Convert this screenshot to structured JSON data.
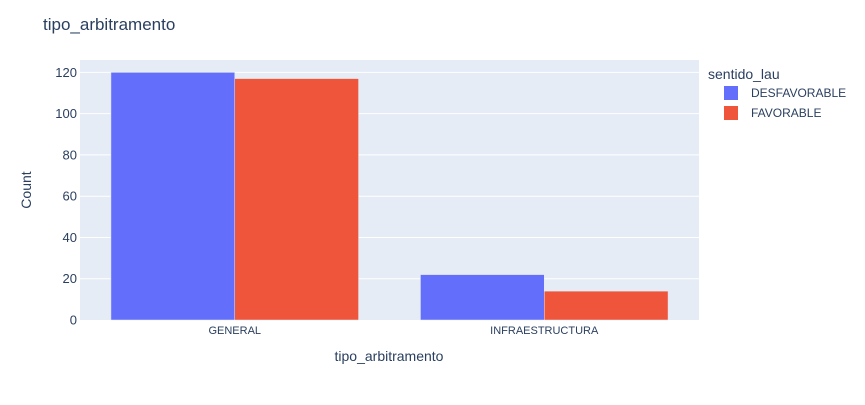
{
  "chart_data": {
    "type": "bar",
    "title": "tipo_arbitramento",
    "xlabel": "tipo_arbitramento",
    "ylabel": "Count",
    "categories": [
      "GENERAL",
      "INFRAESTRUCTURA"
    ],
    "series": [
      {
        "name": "DESFAVORABLE",
        "values": [
          120,
          22
        ],
        "color": "#636efa"
      },
      {
        "name": "FAVORABLE",
        "values": [
          117,
          14
        ],
        "color": "#ef553b"
      }
    ],
    "ylim": [
      0,
      126
    ],
    "yticks": [
      0,
      20,
      40,
      60,
      80,
      100,
      120
    ],
    "grid": true,
    "legend_title": "sentido_lau",
    "legend_position": "top-right",
    "plot_background": "#e5ecf6"
  }
}
